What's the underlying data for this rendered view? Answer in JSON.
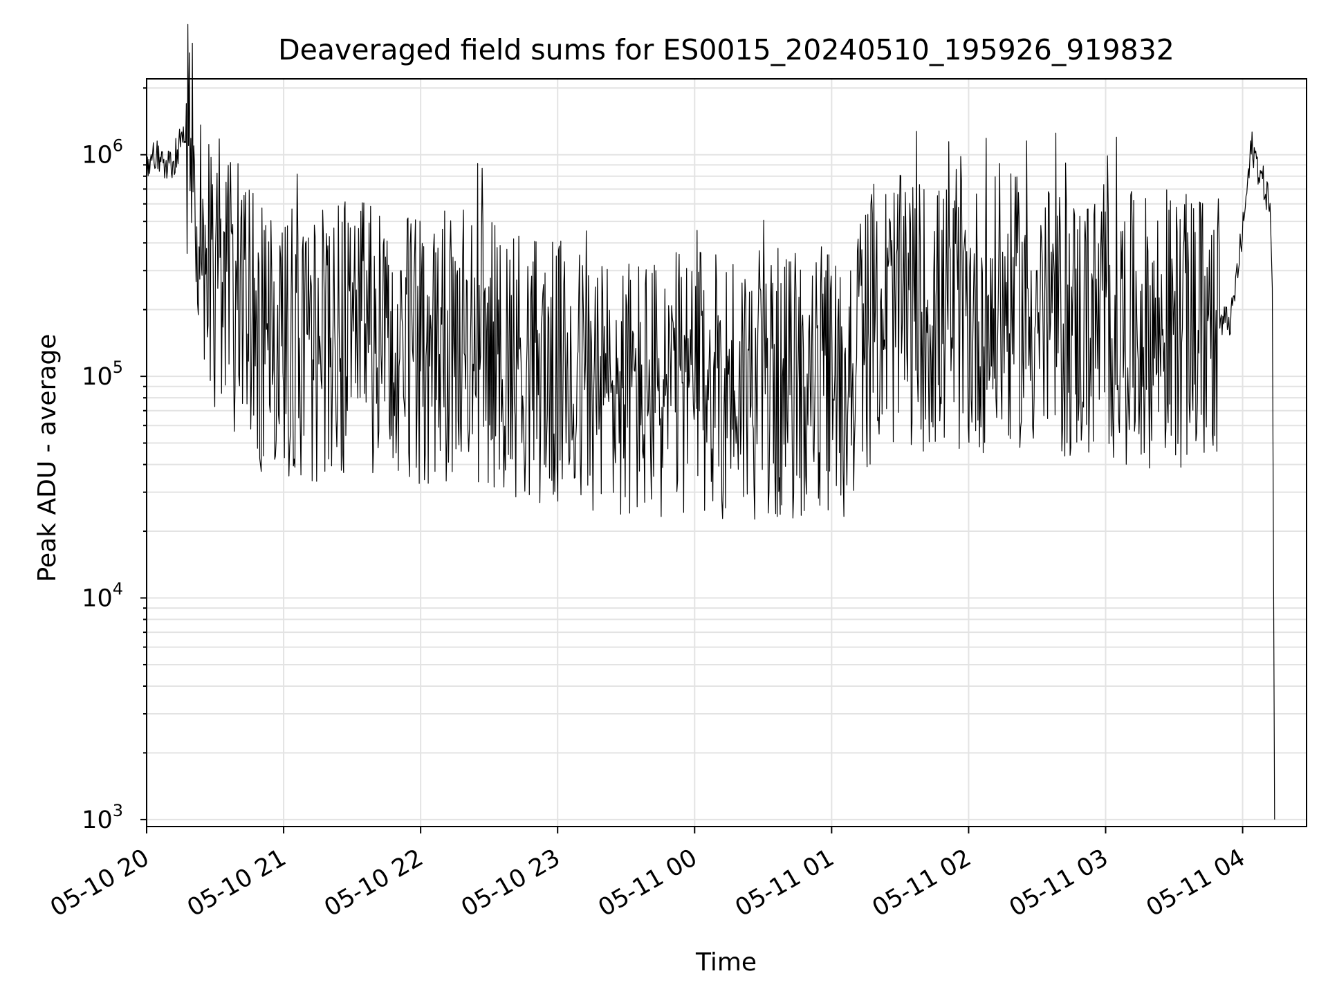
{
  "chart_data": {
    "type": "line",
    "title": "Deaveraged field sums for ES0015_20240510_195926_919832",
    "xlabel": "Time",
    "ylabel": "Peak ADU - average",
    "yscale": "log",
    "ylim": [
      930,
      2200000
    ],
    "xlim": [
      "2024-05-10 20:00",
      "2024-05-11 04:28"
    ],
    "grid": true,
    "line_color": "#000000",
    "grid_color": "#e3e3e3",
    "x_ticks": [
      "05-10 20",
      "05-10 21",
      "05-10 22",
      "05-10 23",
      "05-11 00",
      "05-11 01",
      "05-11 02",
      "05-11 03",
      "05-11 04"
    ],
    "y_ticks": [
      {
        "value": 1000,
        "base": "10",
        "exp": "3"
      },
      {
        "value": 10000,
        "base": "10",
        "exp": "4"
      },
      {
        "value": 100000,
        "base": "10",
        "exp": "5"
      },
      {
        "value": 1000000,
        "base": "10",
        "exp": "6"
      }
    ],
    "series": [
      {
        "x": [
          "2024-05-10 20:00",
          "2024-05-10 20:06",
          "2024-05-10 20:10",
          "2024-05-10 20:14",
          "2024-05-10 20:16",
          "2024-05-10 20:19",
          "2024-05-10 20:22",
          "2024-05-10 20:25",
          "2024-05-10 20:30",
          "2024-05-10 20:40",
          "2024-05-10 20:50",
          "2024-05-10 21:00",
          "2024-05-10 21:15",
          "2024-05-10 21:30",
          "2024-05-10 21:45",
          "2024-05-10 22:00",
          "2024-05-10 22:20",
          "2024-05-10 22:40",
          "2024-05-10 23:00",
          "2024-05-10 23:20",
          "2024-05-10 23:40",
          "2024-05-11 00:00",
          "2024-05-11 00:20",
          "2024-05-11 00:40",
          "2024-05-11 01:00",
          "2024-05-11 01:05",
          "2024-05-11 01:20",
          "2024-05-11 01:40",
          "2024-05-11 02:00",
          "2024-05-11 02:20",
          "2024-05-11 02:40",
          "2024-05-11 03:00",
          "2024-05-11 03:20",
          "2024-05-11 03:40",
          "2024-05-11 03:55",
          "2024-05-11 04:00",
          "2024-05-11 04:04",
          "2024-05-11 04:08",
          "2024-05-11 04:12",
          "2024-05-11 04:13",
          "2024-05-11 04:14"
        ],
        "y": [
          900000,
          1000000,
          850000,
          1100000,
          1400000,
          950000,
          700000,
          400000,
          300000,
          220000,
          150000,
          130000,
          140000,
          150000,
          140000,
          130000,
          140000,
          120000,
          100000,
          90000,
          85000,
          90000,
          95000,
          90000,
          95000,
          85000,
          200000,
          190000,
          180000,
          200000,
          170000,
          170000,
          160000,
          160000,
          180000,
          450000,
          1100000,
          800000,
          600000,
          250000,
          1000
        ]
      }
    ]
  }
}
